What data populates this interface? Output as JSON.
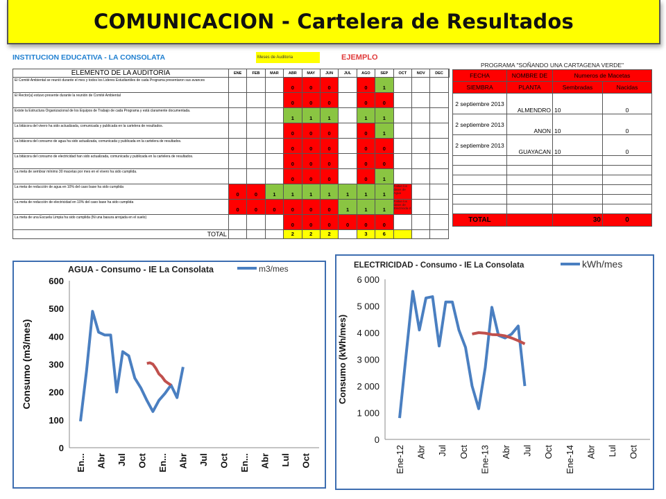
{
  "title": "COMUNICACION - Cartelera de Resultados",
  "institution": "INSTITUCION EDUCATIVA  - LA CONSOLATA",
  "legend_label": "Meses de Auditoria",
  "example_label": "EJEMPLO",
  "colors": {
    "banner": "#ffff00",
    "red": "#ff0000",
    "green": "#8ac542",
    "blue_series": "#4a7fc1",
    "red_series": "#c0504d",
    "institution_text": "#1f7fd0"
  },
  "audit": {
    "header": "ELEMENTO DE LA AUDITORIA",
    "months": [
      "ENE",
      "FEB",
      "MAR",
      "ABR",
      "MAY",
      "JUN",
      "JUL",
      "AGO",
      "SEP",
      "OCT",
      "NOV",
      "DEC"
    ],
    "rows": [
      {
        "desc": "El Comité Ambiental se reunió durante el mes y todos los Lideres Estudiantiles de cada Programa presentaron sus avances",
        "cells": [
          "",
          "",
          "",
          "0",
          "0",
          "0",
          "",
          "0",
          "1",
          "",
          "",
          ""
        ],
        "colors": [
          "",
          "",
          "",
          "r",
          "r",
          "r",
          "",
          "r",
          "g",
          "",
          "",
          ""
        ],
        "note": ""
      },
      {
        "desc": "El Rector(a) estuvo presente durante la reunión de Comité Ambiental",
        "cells": [
          "",
          "",
          "",
          "0",
          "0",
          "0",
          "",
          "0",
          "0",
          "",
          "",
          ""
        ],
        "colors": [
          "",
          "",
          "",
          "r",
          "r",
          "r",
          "",
          "r",
          "r",
          "",
          "",
          ""
        ],
        "note": ""
      },
      {
        "desc": "Existe la Estructura Organizacional de los  Equipos de Trabajo de cada Programa y está claramente documentada.",
        "cells": [
          "",
          "",
          "",
          "1",
          "1",
          "1",
          "",
          "1",
          "1",
          "",
          "",
          ""
        ],
        "colors": [
          "",
          "",
          "",
          "g",
          "g",
          "g",
          "",
          "g",
          "g",
          "",
          "",
          ""
        ],
        "note": ""
      },
      {
        "desc": "La bitácora del vivero ha sido actualizada, comunicada y publicada en la cartelera de resultados.",
        "cells": [
          "",
          "",
          "",
          "0",
          "0",
          "0",
          "",
          "0",
          "1",
          "",
          "",
          ""
        ],
        "colors": [
          "",
          "",
          "",
          "r",
          "r",
          "r",
          "",
          "r",
          "g",
          "",
          "",
          ""
        ],
        "note": ""
      },
      {
        "desc": "La bitácora del consumo de agua ha sido actualizada, comunicada y publicada en la cartelera de resultados.",
        "cells": [
          "",
          "",
          "",
          "0",
          "0",
          "0",
          "",
          "0",
          "0",
          "",
          "",
          ""
        ],
        "colors": [
          "",
          "",
          "",
          "r",
          "r",
          "r",
          "",
          "r",
          "r",
          "",
          "",
          ""
        ],
        "note": ""
      },
      {
        "desc": "La bitácora del consumo de electricidad han sido actualizada, comunicada y publicada en la cartelera de resultados.",
        "cells": [
          "",
          "",
          "",
          "0",
          "0",
          "0",
          "",
          "0",
          "0",
          "",
          "",
          ""
        ],
        "colors": [
          "",
          "",
          "",
          "r",
          "r",
          "r",
          "",
          "r",
          "r",
          "",
          "",
          ""
        ],
        "note": ""
      },
      {
        "desc": "La meta de sembrar mínimo 30 macetas por mes en el vivero ha sido cumplida.",
        "cells": [
          "",
          "",
          "",
          "0",
          "0",
          "0",
          "",
          "0",
          "1",
          "",
          "",
          ""
        ],
        "colors": [
          "",
          "",
          "",
          "r",
          "r",
          "r",
          "",
          "r",
          "g",
          "",
          "",
          ""
        ],
        "note": ""
      },
      {
        "desc": "La meta de reducción de agua en 10% del caso base ha sido cumplida",
        "cells": [
          "0",
          "0",
          "1",
          "1",
          "1",
          "1",
          "1",
          "1",
          "1",
          "",
          "",
          ""
        ],
        "colors": [
          "r",
          "r",
          "g",
          "g",
          "g",
          "g",
          "g",
          "g",
          "g",
          "r",
          "",
          ""
        ],
        "note": "Faltan los datos de Agua"
      },
      {
        "desc": "La meta de reducción de electricidad en 10% del caso base ha sido cumplida",
        "cells": [
          "0",
          "0",
          "0",
          "0",
          "0",
          "0",
          "1",
          "1",
          "1",
          "",
          "",
          ""
        ],
        "colors": [
          "r",
          "r",
          "r",
          "r",
          "r",
          "r",
          "g",
          "g",
          "g",
          "r",
          "",
          ""
        ],
        "note": "Faltan los datos de Electricida d"
      },
      {
        "desc": "La meta de una Escuela Limpia ha sido cumplida (Ni una basura arrojada en el suelo)",
        "cells": [
          "",
          "",
          "",
          "0",
          "0",
          "0",
          "0",
          "0",
          "0",
          "",
          "",
          ""
        ],
        "colors": [
          "",
          "",
          "",
          "r",
          "r",
          "r",
          "r",
          "r",
          "r",
          "",
          "",
          ""
        ],
        "note": ""
      }
    ],
    "total_label": "TOTAL",
    "totals": [
      "",
      "",
      "",
      "2",
      "2",
      "2",
      "",
      "3",
      "6",
      "",
      "",
      ""
    ],
    "total_colors": [
      "",
      "",
      "",
      "y",
      "y",
      "y",
      "",
      "y",
      "y",
      "y",
      "",
      ""
    ]
  },
  "program": {
    "title": "PROGRAMA \"SOÑANDO UNA CARTAGENA VERDE\"",
    "h1": [
      "FECHA",
      "NOMBRE DE",
      "Numeros de Macetas"
    ],
    "h2": [
      "SIEMBRA",
      "PLANTA",
      "Sembradas",
      "Nacidas"
    ],
    "rows": [
      {
        "fecha": "2 septiembre 2013",
        "planta": "ALMENDRO",
        "sembradas": "10",
        "nacidas": "0"
      },
      {
        "fecha": "2 septiembre 2013",
        "planta": "ANON",
        "sembradas": "10",
        "nacidas": "0"
      },
      {
        "fecha": "2 septiembre 2013",
        "planta": "GUAYACAN",
        "sembradas": "10",
        "nacidas": "0"
      }
    ],
    "total_label": "TOTAL",
    "total_sembradas": "30",
    "total_nacidas": "0"
  },
  "chart_data": [
    {
      "type": "line",
      "title": "AGUA - Consumo - IE La Consolata",
      "ylabel": "Consumo  (m3/mes)",
      "xlabel": "",
      "ylim": [
        0,
        600
      ],
      "yticks": [
        "0",
        "100",
        "200",
        "300",
        "400",
        "500",
        "600"
      ],
      "xticks": [
        "En...",
        "Abr",
        "Jul",
        "Oct",
        "En...",
        "Abr",
        "Jul",
        "Oct",
        "En...",
        "Abr",
        "Lul",
        "Oct"
      ],
      "series": [
        {
          "name": "m3/mes",
          "x": [
            0,
            1,
            2,
            3,
            4,
            5,
            6,
            7,
            8,
            9,
            10,
            11,
            12,
            13,
            14,
            15,
            16,
            17,
            18
          ],
          "values": [
            95,
            275,
            490,
            415,
            405,
            405,
            200,
            345,
            330,
            250,
            215,
            170,
            130,
            170,
            195,
            225,
            180,
            290,
            null
          ]
        },
        {
          "values": [
            null,
            null,
            null,
            null,
            null,
            null,
            null,
            null,
            null,
            null,
            null,
            null,
            null,
            null,
            null,
            null,
            null,
            null,
            null
          ],
          "x2": [
            11,
            11.5,
            12,
            12.5,
            13,
            13.5,
            14,
            14.5,
            15
          ],
          "values2": [
            303,
            305,
            300,
            285,
            265,
            255,
            240,
            232,
            225
          ]
        }
      ]
    },
    {
      "type": "line",
      "title": "ELECTRICIDAD - Consumo - IE La Consolata",
      "ylabel": "Consumo (kWh/mes)",
      "xlabel": "",
      "ylim": [
        0,
        6000
      ],
      "yticks": [
        "0",
        "1 000",
        "2 000",
        "3 000",
        "4 000",
        "5 000",
        "6 000"
      ],
      "xticks": [
        "Ene-12",
        "Abr",
        "Jul",
        "Oct",
        "Ene-13",
        "Abr",
        "Jul",
        "Oct",
        "Ene-14",
        "Abr",
        "Lul",
        "Oct"
      ],
      "series": [
        {
          "name": "kWh/mes",
          "x": [
            0,
            1,
            2,
            3,
            4,
            5,
            6,
            7,
            8,
            9,
            10,
            11,
            12,
            13,
            14,
            15,
            16,
            17,
            18,
            19
          ],
          "values": [
            800,
            3200,
            5550,
            4100,
            5300,
            5350,
            3500,
            5150,
            5150,
            4100,
            3450,
            2000,
            1150,
            2700,
            4950,
            3900,
            3800,
            3950,
            4250,
            2000
          ]
        },
        {
          "x": [
            11,
            12,
            13,
            14,
            15,
            16,
            17,
            18,
            19
          ],
          "values": [
            3950,
            4000,
            3980,
            3930,
            3920,
            3880,
            3800,
            3700,
            3580
          ]
        }
      ]
    }
  ]
}
